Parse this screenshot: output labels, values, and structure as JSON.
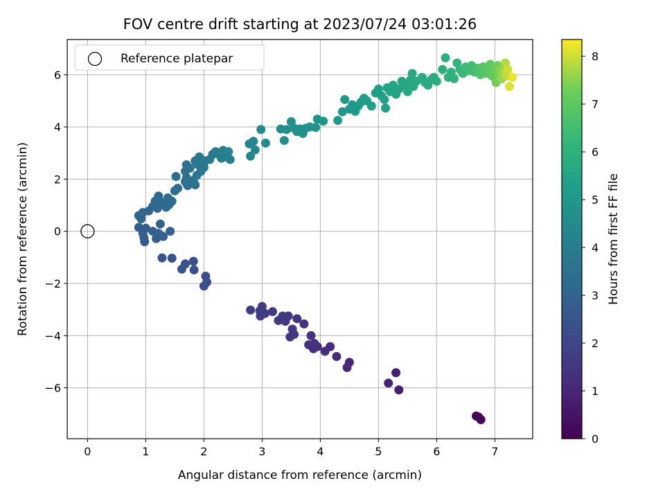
{
  "chart_data": {
    "type": "scatter",
    "title": "FOV centre drift starting at 2023/07/24 03:01:26",
    "xlabel": "Angular distance from reference (arcmin)",
    "ylabel": "Rotation from reference (arcmin)",
    "colorbar_label": "Hours from first FF file",
    "xlim": [
      -0.35,
      7.65
    ],
    "ylim": [
      -7.95,
      7.35
    ],
    "clim": [
      0,
      8.35
    ],
    "colormap": "viridis",
    "grid": true,
    "legend_placement": "top-left",
    "x_ticks": [
      0,
      1,
      2,
      3,
      4,
      5,
      6,
      7
    ],
    "y_ticks": [
      -6,
      -4,
      -2,
      0,
      2,
      4,
      6
    ],
    "colorbar_ticks": [
      0,
      1,
      2,
      3,
      4,
      5,
      6,
      7,
      8
    ],
    "reference": {
      "name": "Reference platepar",
      "x": 0,
      "y": 0
    },
    "points": [
      [
        6.68,
        -7.08,
        0.05
      ],
      [
        6.72,
        -7.12,
        0.1
      ],
      [
        6.76,
        -7.22,
        0.15
      ],
      [
        5.3,
        -5.42,
        0.8
      ],
      [
        5.35,
        -6.08,
        0.85
      ],
      [
        5.17,
        -5.82,
        0.9
      ],
      [
        4.5,
        -5.02,
        1.0
      ],
      [
        4.46,
        -5.22,
        1.05
      ],
      [
        4.28,
        -4.8,
        1.1
      ],
      [
        4.17,
        -4.42,
        1.15
      ],
      [
        4.08,
        -4.6,
        1.2
      ],
      [
        3.95,
        -4.42,
        1.25
      ],
      [
        3.88,
        -4.5,
        1.28
      ],
      [
        3.8,
        -4.35,
        1.3
      ],
      [
        3.9,
        -4.3,
        1.32
      ],
      [
        3.84,
        -4.0,
        1.35
      ],
      [
        3.72,
        -3.55,
        1.4
      ],
      [
        3.6,
        -3.35,
        1.45
      ],
      [
        3.52,
        -3.75,
        1.48
      ],
      [
        3.55,
        -3.95,
        1.5
      ],
      [
        3.48,
        -4.05,
        1.52
      ],
      [
        3.45,
        -3.25,
        1.55
      ],
      [
        3.4,
        -3.45,
        1.57
      ],
      [
        3.35,
        -3.25,
        1.6
      ],
      [
        3.28,
        -3.42,
        1.62
      ],
      [
        3.18,
        -3.08,
        1.65
      ],
      [
        3.05,
        -3.15,
        1.68
      ],
      [
        3.0,
        -2.88,
        1.7
      ],
      [
        2.96,
        -3.05,
        1.72
      ],
      [
        2.97,
        -3.25,
        1.74
      ],
      [
        2.8,
        -3.02,
        1.76
      ],
      [
        2.05,
        -1.95,
        2.2
      ],
      [
        2.0,
        -2.1,
        2.22
      ],
      [
        2.03,
        -1.72,
        2.25
      ],
      [
        1.83,
        -1.48,
        2.3
      ],
      [
        1.82,
        -1.15,
        2.33
      ],
      [
        1.68,
        -1.25,
        2.35
      ],
      [
        1.62,
        -1.45,
        2.38
      ],
      [
        1.45,
        -1.03,
        2.4
      ],
      [
        1.28,
        -1.02,
        2.43
      ],
      [
        0.98,
        -0.4,
        2.7
      ],
      [
        0.97,
        -0.25,
        2.72
      ],
      [
        0.95,
        -0.08,
        2.75
      ],
      [
        0.88,
        0.15,
        2.77
      ],
      [
        1.0,
        0.12,
        2.8
      ],
      [
        1.12,
        0.0,
        2.82
      ],
      [
        1.22,
        -0.08,
        2.85
      ],
      [
        1.18,
        -0.28,
        2.87
      ],
      [
        1.3,
        -0.2,
        2.9
      ],
      [
        1.42,
        0.0,
        2.92
      ],
      [
        1.25,
        0.28,
        2.95
      ],
      [
        0.88,
        0.6,
        3.0
      ],
      [
        0.92,
        0.48,
        3.02
      ],
      [
        0.95,
        0.72,
        3.05
      ],
      [
        1.05,
        0.78,
        3.08
      ],
      [
        1.12,
        0.95,
        3.1
      ],
      [
        1.2,
        0.88,
        3.12
      ],
      [
        1.16,
        1.15,
        3.15
      ],
      [
        1.22,
        1.35,
        3.18
      ],
      [
        1.28,
        1.1,
        3.2
      ],
      [
        1.35,
        0.92,
        3.22
      ],
      [
        1.4,
        1.02,
        3.25
      ],
      [
        1.45,
        1.15,
        3.28
      ],
      [
        1.38,
        1.28,
        3.3
      ],
      [
        1.5,
        1.55,
        3.32
      ],
      [
        1.55,
        1.65,
        3.35
      ],
      [
        1.52,
        2.1,
        3.38
      ],
      [
        1.68,
        1.9,
        3.4
      ],
      [
        1.72,
        1.75,
        3.42
      ],
      [
        1.75,
        1.9,
        3.45
      ],
      [
        1.7,
        2.05,
        3.48
      ],
      [
        1.68,
        2.3,
        3.5
      ],
      [
        1.7,
        2.55,
        3.52
      ],
      [
        1.76,
        2.42,
        3.55
      ],
      [
        1.82,
        1.95,
        3.58
      ],
      [
        1.85,
        1.78,
        3.6
      ],
      [
        1.88,
        2.15,
        3.62
      ],
      [
        1.9,
        2.55,
        3.65
      ],
      [
        1.95,
        2.3,
        3.68
      ],
      [
        1.85,
        2.7,
        3.7
      ],
      [
        1.92,
        2.85,
        3.72
      ],
      [
        2.0,
        2.45,
        3.75
      ],
      [
        2.02,
        2.7,
        3.78
      ],
      [
        2.1,
        2.75,
        3.8
      ],
      [
        2.15,
        2.95,
        3.85
      ],
      [
        2.2,
        3.05,
        3.9
      ],
      [
        2.25,
        2.95,
        3.95
      ],
      [
        2.3,
        2.8,
        4.0
      ],
      [
        2.33,
        3.1,
        4.05
      ],
      [
        2.38,
        2.85,
        4.1
      ],
      [
        2.42,
        3.05,
        4.12
      ],
      [
        2.45,
        2.75,
        4.15
      ],
      [
        2.8,
        2.88,
        4.3
      ],
      [
        2.78,
        3.35,
        4.35
      ],
      [
        2.85,
        3.45,
        4.38
      ],
      [
        2.88,
        3.12,
        4.4
      ],
      [
        2.98,
        3.9,
        4.45
      ],
      [
        3.06,
        3.38,
        4.5
      ],
      [
        3.32,
        3.92,
        4.55
      ],
      [
        3.38,
        3.48,
        4.58
      ],
      [
        3.42,
        3.9,
        4.6
      ],
      [
        3.5,
        4.2,
        4.62
      ],
      [
        3.55,
        3.95,
        4.65
      ],
      [
        3.6,
        3.82,
        4.68
      ],
      [
        3.65,
        3.92,
        4.7
      ],
      [
        3.7,
        3.75,
        4.72
      ],
      [
        3.75,
        3.95,
        4.75
      ],
      [
        3.82,
        4.0,
        4.78
      ],
      [
        3.92,
        3.98,
        4.8
      ],
      [
        3.95,
        4.3,
        4.82
      ],
      [
        4.05,
        4.22,
        4.85
      ],
      [
        4.3,
        4.25,
        5.0
      ],
      [
        4.38,
        4.58,
        5.02
      ],
      [
        4.42,
        5.05,
        5.05
      ],
      [
        4.5,
        4.68,
        5.08
      ],
      [
        4.55,
        4.85,
        5.1
      ],
      [
        4.6,
        4.6,
        5.12
      ],
      [
        4.65,
        4.8,
        5.15
      ],
      [
        4.7,
        4.95,
        5.18
      ],
      [
        4.75,
        5.1,
        5.2
      ],
      [
        4.8,
        5.0,
        5.22
      ],
      [
        4.88,
        4.8,
        5.25
      ],
      [
        4.95,
        5.3,
        5.28
      ],
      [
        5.0,
        5.45,
        5.3
      ],
      [
        5.05,
        5.2,
        5.32
      ],
      [
        5.1,
        5.05,
        5.35
      ],
      [
        5.12,
        4.72,
        5.38
      ],
      [
        5.15,
        5.5,
        5.4
      ],
      [
        5.2,
        5.35,
        5.42
      ],
      [
        5.25,
        5.6,
        5.45
      ],
      [
        5.3,
        5.25,
        5.48
      ],
      [
        5.35,
        5.45,
        5.5
      ],
      [
        5.4,
        5.75,
        5.52
      ],
      [
        5.45,
        5.58,
        5.55
      ],
      [
        5.5,
        5.35,
        5.58
      ],
      [
        5.55,
        5.8,
        5.6
      ],
      [
        5.6,
        5.55,
        5.62
      ],
      [
        5.65,
        5.75,
        5.65
      ],
      [
        5.58,
        6.05,
        5.68
      ],
      [
        5.75,
        5.9,
        5.7
      ],
      [
        5.8,
        5.7,
        5.72
      ],
      [
        5.85,
        5.6,
        5.75
      ],
      [
        5.9,
        5.8,
        5.78
      ],
      [
        5.95,
        5.9,
        5.8
      ],
      [
        6.0,
        5.75,
        5.82
      ],
      [
        6.1,
        6.2,
        5.9
      ],
      [
        6.15,
        6.65,
        5.95
      ],
      [
        6.2,
        5.9,
        6.0
      ],
      [
        6.25,
        6.1,
        6.05
      ],
      [
        6.3,
        5.85,
        6.1
      ],
      [
        6.35,
        6.45,
        6.15
      ],
      [
        6.4,
        6.2,
        6.25
      ],
      [
        6.45,
        6.05,
        6.3
      ],
      [
        6.5,
        6.3,
        6.4
      ],
      [
        6.55,
        6.15,
        6.45
      ],
      [
        6.6,
        6.35,
        6.5
      ],
      [
        6.65,
        6.1,
        6.6
      ],
      [
        6.7,
        6.25,
        6.7
      ],
      [
        6.75,
        6.0,
        6.8
      ],
      [
        6.8,
        6.3,
        6.85
      ],
      [
        6.85,
        6.05,
        6.9
      ],
      [
        6.9,
        6.2,
        7.0
      ],
      [
        6.92,
        6.4,
        7.05
      ],
      [
        6.95,
        5.95,
        7.1
      ],
      [
        7.0,
        6.15,
        7.2
      ],
      [
        7.02,
        5.7,
        7.3
      ],
      [
        7.05,
        6.35,
        7.35
      ],
      [
        7.08,
        6.0,
        7.4
      ],
      [
        7.1,
        6.2,
        7.5
      ],
      [
        7.12,
        5.85,
        7.6
      ],
      [
        7.15,
        6.1,
        7.7
      ],
      [
        7.18,
        6.45,
        7.8
      ],
      [
        7.2,
        5.95,
        7.9
      ],
      [
        7.22,
        6.2,
        8.0
      ],
      [
        7.25,
        5.55,
        8.1
      ],
      [
        7.3,
        5.9,
        8.2
      ]
    ]
  }
}
